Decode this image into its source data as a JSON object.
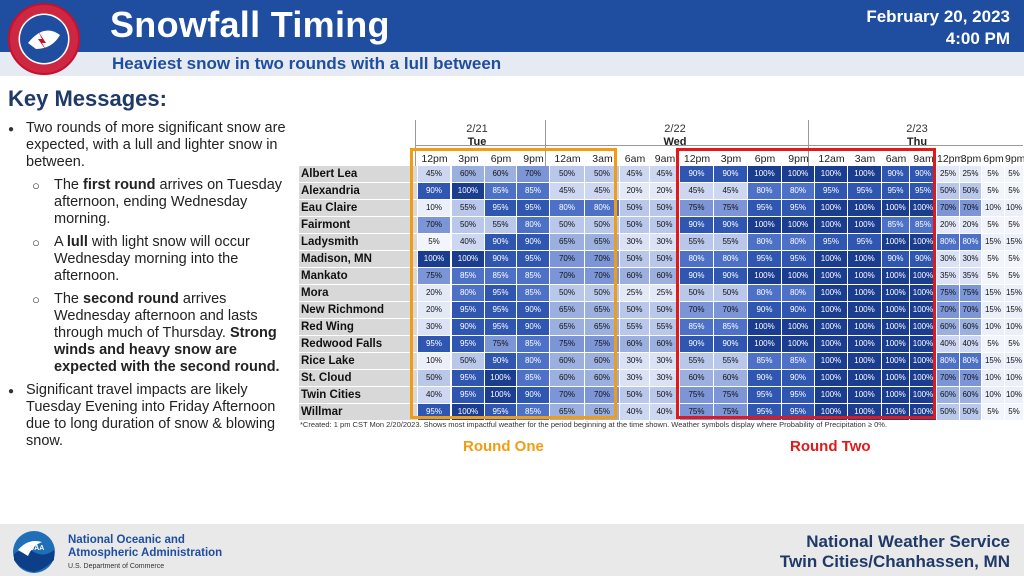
{
  "header": {
    "title": "Snowfall Timing",
    "subtitle": "Heaviest snow in two rounds with a lull between",
    "date": "February 20, 2023",
    "time": "4:00 PM",
    "logo_text": "NATIONAL WEATHER SERVICE"
  },
  "key_messages": {
    "heading": "Key Messages:",
    "b1": "Two rounds of more significant snow are expected, with a lull and lighter snow in between.",
    "sub1_pre": "The ",
    "sub1_bold": "first round",
    "sub1_post": " arrives on Tuesday afternoon, ending Wednesday morning.",
    "sub2_pre": "A ",
    "sub2_bold": "lull",
    "sub2_post": " with light snow will occur Wednesday morning into the afternoon.",
    "sub3_pre": "The ",
    "sub3_bold": "second round",
    "sub3_post": " arrives Wednesday afternoon and lasts through much of Thursday.",
    "sub3_strong": "Strong winds and heavy snow are expected with the second round.",
    "b2": "Significant travel impacts are likely Tuesday Evening into Friday Afternoon due to long duration of snow & blowing snow."
  },
  "table": {
    "days": [
      {
        "date": "2/21",
        "name": "Tue"
      },
      {
        "date": "2/22",
        "name": "Wed"
      },
      {
        "date": "2/23",
        "name": "Thu"
      }
    ],
    "times": [
      "12pm",
      "3pm",
      "6pm",
      "9pm",
      "12am",
      "3am",
      "6am",
      "9am",
      "12pm",
      "3pm",
      "6pm",
      "9pm",
      "12am",
      "3am",
      "6am",
      "9am",
      "12pm",
      "3pm",
      "6pm",
      "9pm"
    ],
    "rows": [
      {
        "city": "Albert Lea",
        "values": [
          "45%",
          "60%",
          "60%",
          "70%",
          "50%",
          "50%",
          "45%",
          "45%",
          "90%",
          "90%",
          "100%",
          "100%",
          "100%",
          "100%",
          "90%",
          "90%",
          "25%",
          "25%",
          "5%",
          "5%"
        ]
      },
      {
        "city": "Alexandria",
        "values": [
          "90%",
          "100%",
          "85%",
          "85%",
          "45%",
          "45%",
          "20%",
          "20%",
          "45%",
          "45%",
          "80%",
          "80%",
          "95%",
          "95%",
          "95%",
          "95%",
          "50%",
          "50%",
          "5%",
          "5%"
        ]
      },
      {
        "city": "Eau Claire",
        "values": [
          "10%",
          "55%",
          "95%",
          "95%",
          "80%",
          "80%",
          "50%",
          "50%",
          "75%",
          "75%",
          "95%",
          "95%",
          "100%",
          "100%",
          "100%",
          "100%",
          "70%",
          "70%",
          "10%",
          "10%"
        ]
      },
      {
        "city": "Fairmont",
        "values": [
          "70%",
          "50%",
          "55%",
          "80%",
          "50%",
          "50%",
          "50%",
          "50%",
          "90%",
          "90%",
          "100%",
          "100%",
          "100%",
          "100%",
          "85%",
          "85%",
          "20%",
          "20%",
          "5%",
          "5%"
        ]
      },
      {
        "city": "Ladysmith",
        "values": [
          "5%",
          "40%",
          "90%",
          "90%",
          "65%",
          "65%",
          "30%",
          "30%",
          "55%",
          "55%",
          "80%",
          "80%",
          "95%",
          "95%",
          "100%",
          "100%",
          "80%",
          "80%",
          "15%",
          "15%"
        ]
      },
      {
        "city": "Madison, MN",
        "values": [
          "100%",
          "100%",
          "90%",
          "95%",
          "70%",
          "70%",
          "50%",
          "50%",
          "80%",
          "80%",
          "95%",
          "95%",
          "100%",
          "100%",
          "90%",
          "90%",
          "30%",
          "30%",
          "5%",
          "5%"
        ]
      },
      {
        "city": "Mankato",
        "values": [
          "75%",
          "85%",
          "85%",
          "85%",
          "70%",
          "70%",
          "60%",
          "60%",
          "90%",
          "90%",
          "100%",
          "100%",
          "100%",
          "100%",
          "100%",
          "100%",
          "35%",
          "35%",
          "5%",
          "5%"
        ]
      },
      {
        "city": "Mora",
        "values": [
          "20%",
          "80%",
          "95%",
          "85%",
          "50%",
          "50%",
          "25%",
          "25%",
          "50%",
          "50%",
          "80%",
          "80%",
          "100%",
          "100%",
          "100%",
          "100%",
          "75%",
          "75%",
          "15%",
          "15%"
        ]
      },
      {
        "city": "New Richmond",
        "values": [
          "20%",
          "95%",
          "95%",
          "90%",
          "65%",
          "65%",
          "50%",
          "50%",
          "70%",
          "70%",
          "90%",
          "90%",
          "100%",
          "100%",
          "100%",
          "100%",
          "70%",
          "70%",
          "15%",
          "15%"
        ]
      },
      {
        "city": "Red Wing",
        "values": [
          "30%",
          "90%",
          "95%",
          "90%",
          "65%",
          "65%",
          "55%",
          "55%",
          "85%",
          "85%",
          "100%",
          "100%",
          "100%",
          "100%",
          "100%",
          "100%",
          "60%",
          "60%",
          "10%",
          "10%"
        ]
      },
      {
        "city": "Redwood Falls",
        "values": [
          "95%",
          "95%",
          "75%",
          "85%",
          "75%",
          "75%",
          "60%",
          "60%",
          "90%",
          "90%",
          "100%",
          "100%",
          "100%",
          "100%",
          "100%",
          "100%",
          "40%",
          "40%",
          "5%",
          "5%"
        ]
      },
      {
        "city": "Rice Lake",
        "values": [
          "10%",
          "50%",
          "90%",
          "80%",
          "60%",
          "60%",
          "30%",
          "30%",
          "55%",
          "55%",
          "85%",
          "85%",
          "100%",
          "100%",
          "100%",
          "100%",
          "80%",
          "80%",
          "15%",
          "15%"
        ]
      },
      {
        "city": "St. Cloud",
        "values": [
          "50%",
          "95%",
          "100%",
          "85%",
          "60%",
          "60%",
          "30%",
          "30%",
          "60%",
          "60%",
          "90%",
          "90%",
          "100%",
          "100%",
          "100%",
          "100%",
          "70%",
          "70%",
          "10%",
          "10%"
        ]
      },
      {
        "city": "Twin Cities",
        "values": [
          "40%",
          "95%",
          "100%",
          "90%",
          "70%",
          "70%",
          "50%",
          "50%",
          "75%",
          "75%",
          "95%",
          "95%",
          "100%",
          "100%",
          "100%",
          "100%",
          "60%",
          "60%",
          "10%",
          "10%"
        ]
      },
      {
        "city": "Willmar",
        "values": [
          "95%",
          "100%",
          "95%",
          "85%",
          "65%",
          "65%",
          "40%",
          "40%",
          "75%",
          "75%",
          "95%",
          "95%",
          "100%",
          "100%",
          "100%",
          "100%",
          "50%",
          "50%",
          "5%",
          "5%"
        ]
      }
    ],
    "footnote": "*Created: 1 pm CST Mon 2/20/2023. Shows most impactful weather for the period beginning at the time shown. Weather symbols display where Probability of Precipitation ≥ 0%.",
    "round_one_label": "Round One",
    "round_two_label": "Round Two",
    "colors": {
      "round_one": "#f39c12",
      "round_two": "#e0191b",
      "header": "#1f4ea1"
    }
  },
  "footer": {
    "noaa_line1": "National Oceanic and",
    "noaa_line2": "Atmospheric Administration",
    "noaa_dept": "U.S. Department of Commerce",
    "office_line1": "National Weather Service",
    "office_line2": "Twin Cities/Chanhassen, MN",
    "noaa_logo_text": "NOAA"
  }
}
